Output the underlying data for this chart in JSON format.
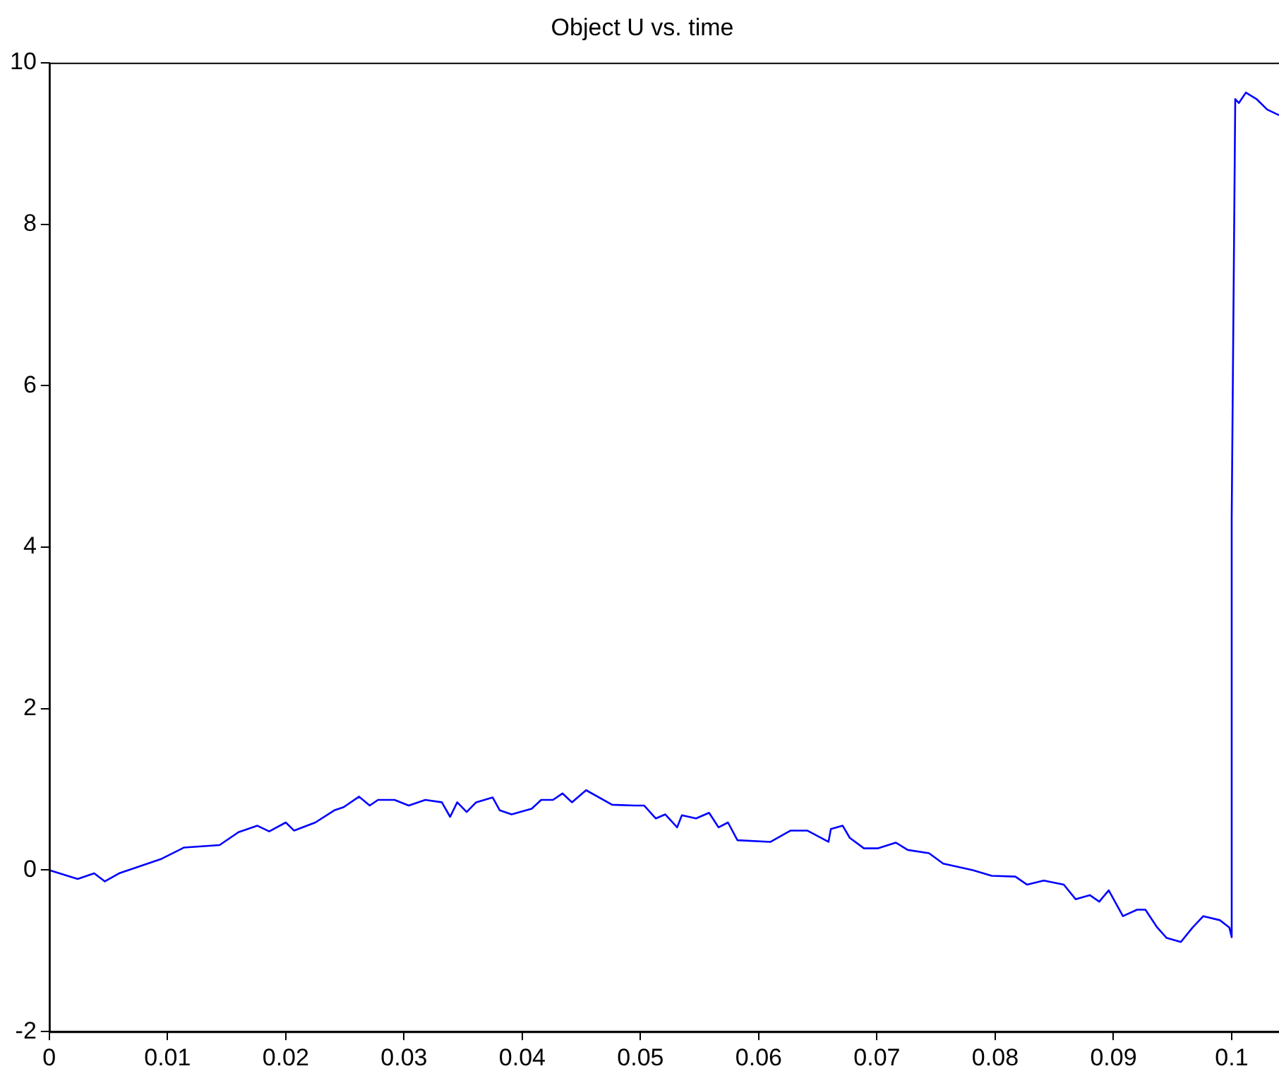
{
  "chart_data": {
    "type": "line",
    "title": "Object U vs. time",
    "x": [
      0,
      0.0024,
      0.0038,
      0.0047,
      0.0059,
      0.0095,
      0.0114,
      0.0144,
      0.016,
      0.0176,
      0.0186,
      0.02,
      0.0207,
      0.0225,
      0.0241,
      0.0249,
      0.0262,
      0.0271,
      0.0278,
      0.0292,
      0.0304,
      0.0318,
      0.0332,
      0.0339,
      0.0345,
      0.0353,
      0.0361,
      0.0375,
      0.0381,
      0.0391,
      0.0408,
      0.0416,
      0.0426,
      0.0434,
      0.0442,
      0.0454,
      0.0476,
      0.0495,
      0.0503,
      0.0513,
      0.0521,
      0.0531,
      0.0535,
      0.0547,
      0.0558,
      0.0566,
      0.0574,
      0.0582,
      0.061,
      0.0627,
      0.0641,
      0.0659,
      0.0661,
      0.0671,
      0.0677,
      0.0689,
      0.0701,
      0.0716,
      0.0726,
      0.0744,
      0.0756,
      0.0781,
      0.0797,
      0.0817,
      0.0827,
      0.0841,
      0.0858,
      0.0868,
      0.088,
      0.0888,
      0.0896,
      0.0908,
      0.092,
      0.0927,
      0.0937,
      0.0945,
      0.0957,
      0.0967,
      0.0976,
      0.099,
      0.0998,
      0.1,
      0.1,
      0.1003,
      0.1006,
      0.1012,
      0.1021,
      0.103,
      0.104
    ],
    "values": [
      0,
      -0.11,
      -0.04,
      -0.14,
      -0.04,
      0.14,
      0.28,
      0.31,
      0.47,
      0.55,
      0.48,
      0.59,
      0.49,
      0.59,
      0.74,
      0.78,
      0.91,
      0.8,
      0.87,
      0.87,
      0.8,
      0.87,
      0.84,
      0.66,
      0.84,
      0.72,
      0.84,
      0.9,
      0.74,
      0.69,
      0.76,
      0.87,
      0.87,
      0.95,
      0.84,
      0.99,
      0.81,
      0.8,
      0.8,
      0.64,
      0.69,
      0.53,
      0.68,
      0.64,
      0.71,
      0.53,
      0.59,
      0.37,
      0.35,
      0.49,
      0.49,
      0.35,
      0.51,
      0.55,
      0.4,
      0.27,
      0.27,
      0.34,
      0.25,
      0.21,
      0.08,
      0,
      -0.07,
      -0.08,
      -0.18,
      -0.13,
      -0.18,
      -0.36,
      -0.31,
      -0.39,
      -0.25,
      -0.57,
      -0.49,
      -0.49,
      -0.71,
      -0.84,
      -0.89,
      -0.71,
      -0.57,
      -0.62,
      -0.71,
      -0.83,
      4.37,
      9.55,
      9.5,
      9.63,
      9.55,
      9.42,
      9.35
    ],
    "color": "#0000ff",
    "xlim": [
      0,
      0.104
    ],
    "xticks": [
      0,
      0.01,
      0.02,
      0.03,
      0.04,
      0.05,
      0.06,
      0.07,
      0.08,
      0.09,
      0.1
    ],
    "ylim": [
      -2,
      10
    ],
    "yticks": [
      -2,
      0,
      2,
      4,
      6,
      8,
      10
    ],
    "grid": false,
    "legend": false,
    "marker": "none",
    "line_style": "solid"
  }
}
